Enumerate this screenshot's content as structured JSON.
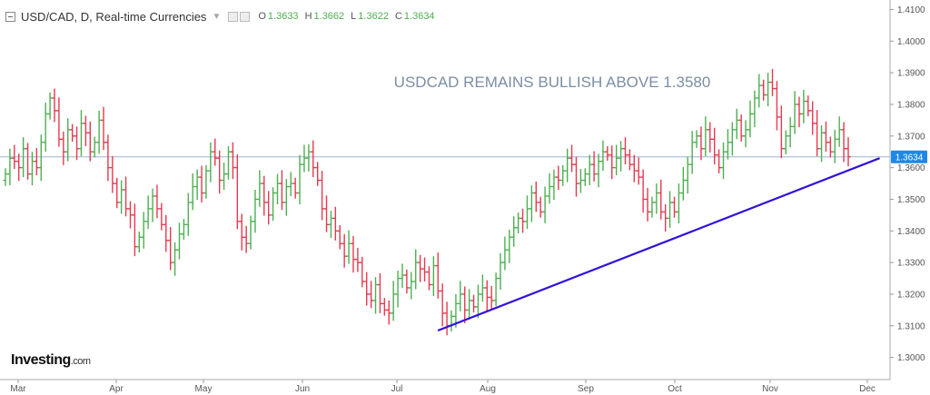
{
  "header": {
    "symbol": "USD/CAD, D, Real-time Currencies",
    "open_label": "O",
    "open": "1.3633",
    "high_label": "H",
    "high": "1.3662",
    "low_label": "L",
    "low": "1.3622",
    "close_label": "C",
    "close": "1.3634"
  },
  "logo": {
    "name": "Investing",
    "suffix": ".com"
  },
  "chart_data": {
    "type": "ohlc",
    "title": "USDCAD REMAINS BULLISH ABOVE 1.3580",
    "ylim": [
      1.293,
      1.413
    ],
    "yticks": [
      "1.4100",
      "1.4000",
      "1.3900",
      "1.3800",
      "1.3700",
      "1.3600",
      "1.3500",
      "1.3400",
      "1.3300",
      "1.3200",
      "1.3100",
      "1.3000"
    ],
    "month_labels": [
      "Mar",
      "Apr",
      "May",
      "Jun",
      "Jul",
      "Aug",
      "Sep",
      "Oct",
      "Nov",
      "Dec"
    ],
    "last_price": 1.3634,
    "last_price_label": "1.3634",
    "trendline": {
      "from": [
        "2019-07-15",
        1.3085
      ],
      "to": [
        "2019-12-05",
        1.363
      ]
    },
    "colors": {
      "up": "#4caf50",
      "down": "#e53950",
      "trendline": "#3311dd",
      "last_price": "#1e88e5"
    },
    "closes": [
      1.358,
      1.363,
      1.362,
      1.36,
      1.366,
      1.358,
      1.362,
      1.36,
      1.368,
      1.377,
      1.382,
      1.378,
      1.369,
      1.365,
      1.372,
      1.37,
      1.366,
      1.374,
      1.371,
      1.365,
      1.368,
      1.375,
      1.368,
      1.36,
      1.355,
      1.349,
      1.353,
      1.347,
      1.345,
      1.335,
      1.338,
      1.343,
      1.347,
      1.351,
      1.347,
      1.342,
      1.337,
      1.33,
      1.334,
      1.339,
      1.342,
      1.349,
      1.354,
      1.357,
      1.352,
      1.359,
      1.365,
      1.363,
      1.356,
      1.358,
      1.365,
      1.36,
      1.343,
      1.338,
      1.336,
      1.343,
      1.35,
      1.355,
      1.349,
      1.345,
      1.352,
      1.355,
      1.349,
      1.354,
      1.355,
      1.352,
      1.361,
      1.363,
      1.365,
      1.36,
      1.356,
      1.347,
      1.342,
      1.344,
      1.34,
      1.336,
      1.332,
      1.336,
      1.331,
      1.33,
      1.324,
      1.32,
      1.318,
      1.323,
      1.317,
      1.315,
      1.314,
      1.32,
      1.325,
      1.326,
      1.322,
      1.324,
      1.33,
      1.328,
      1.327,
      1.323,
      1.329,
      1.321,
      1.314,
      1.31,
      1.313,
      1.317,
      1.32,
      1.315,
      1.318,
      1.316,
      1.32,
      1.322,
      1.319,
      1.318,
      1.325,
      1.33,
      1.334,
      1.338,
      1.341,
      1.344,
      1.343,
      1.347,
      1.352,
      1.349,
      1.346,
      1.351,
      1.354,
      1.357,
      1.356,
      1.359,
      1.363,
      1.361,
      1.355,
      1.356,
      1.358,
      1.361,
      1.358,
      1.362,
      1.365,
      1.364,
      1.36,
      1.363,
      1.366,
      1.364,
      1.361,
      1.359,
      1.357,
      1.35,
      1.346,
      1.349,
      1.352,
      1.346,
      1.344,
      1.349,
      1.346,
      1.352,
      1.356,
      1.361,
      1.368,
      1.37,
      1.366,
      1.372,
      1.369,
      1.364,
      1.36,
      1.365,
      1.368,
      1.372,
      1.375,
      1.37,
      1.372,
      1.377,
      1.382,
      1.386,
      1.383,
      1.387,
      1.385,
      1.376,
      1.366,
      1.37,
      1.373,
      1.38,
      1.377,
      1.381,
      1.378,
      1.374,
      1.366,
      1.371,
      1.368,
      1.365,
      1.369,
      1.372,
      1.366,
      1.3634
    ]
  }
}
